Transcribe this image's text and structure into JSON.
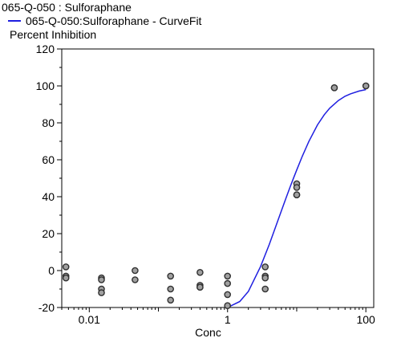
{
  "header": {
    "title": "065-Q-050  : Sulforaphane",
    "legend_label": "065-Q-050:Sulforaphane - CurveFit",
    "ylabel": "Percent Inhibition"
  },
  "chart_data": {
    "type": "scatter",
    "title": "065-Q-050  : Sulforaphane",
    "xlabel": "Conc",
    "ylabel": "Percent Inhibition",
    "xscale": "log",
    "xlim": [
      0.004,
      130
    ],
    "ylim": [
      -20,
      120
    ],
    "xticks": [
      0.01,
      1,
      100
    ],
    "xtick_labels": [
      "0.01",
      "1",
      "100"
    ],
    "yticks": [
      -20,
      0,
      20,
      40,
      60,
      80,
      100,
      120
    ],
    "ytick_labels": [
      "-20",
      "0",
      "20",
      "40",
      "60",
      "80",
      "100",
      "120"
    ],
    "grid": false,
    "legend": "top-left",
    "colors": {
      "curve": "#1f1fe0",
      "points_fill": "#a0a0a0",
      "points_stroke": "#303030"
    },
    "series": [
      {
        "type": "scatter",
        "x": [
          0.0046,
          0.0046,
          0.0046,
          0.015,
          0.015,
          0.015,
          0.015,
          0.046,
          0.046,
          0.15,
          0.15,
          0.15,
          0.4,
          0.4,
          0.4,
          0.4,
          1.0,
          1.0,
          1.0,
          1.0,
          3.5,
          3.5,
          3.5,
          3.5,
          10,
          10,
          10,
          10,
          35,
          35,
          100,
          100
        ],
        "y": [
          2,
          -3,
          -4,
          -4,
          -5,
          -10,
          -12,
          0,
          -5,
          -3,
          -10,
          -16,
          -1,
          -8,
          -9,
          -9,
          -3,
          -7,
          -13,
          -19,
          2,
          -3,
          -4,
          -10,
          47,
          45,
          41,
          41,
          99,
          99,
          100,
          100
        ]
      },
      {
        "name": "065-Q-050:Sulforaphane - CurveFit",
        "type": "line",
        "x": [
          1.0,
          1.5,
          2.0,
          3.0,
          4.0,
          5.0,
          6.0,
          7.0,
          8.0,
          9.0,
          10.0,
          12.0,
          15.0,
          20.0,
          25.0,
          30.0,
          40.0,
          50.0,
          60.0,
          80.0,
          100.0
        ],
        "y": [
          -20.0,
          -16.8,
          -11.3,
          2.2,
          14.1,
          24.1,
          32.3,
          39.2,
          45.1,
          50.1,
          54.5,
          61.8,
          69.9,
          78.9,
          84.4,
          87.9,
          92.1,
          94.4,
          95.7,
          97.2,
          98.0
        ]
      }
    ]
  }
}
